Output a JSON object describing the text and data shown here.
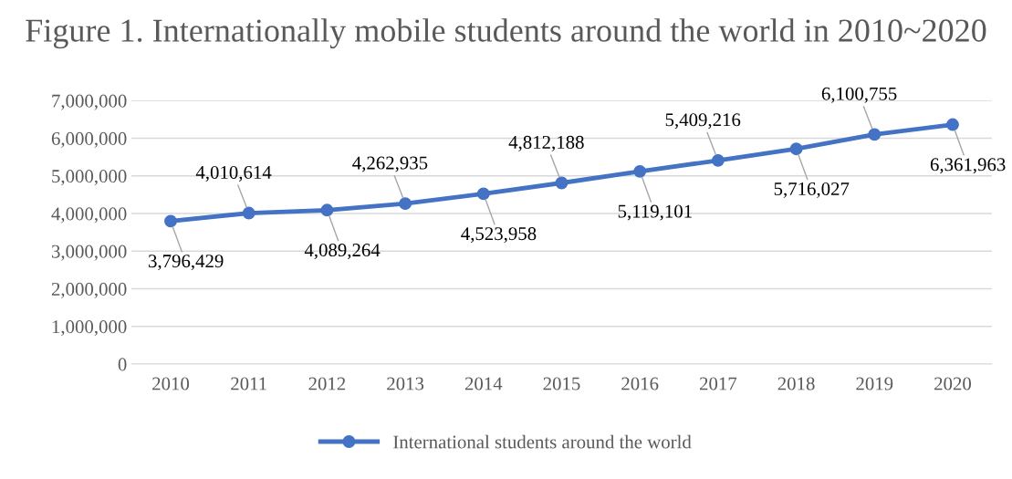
{
  "chart_data": {
    "type": "line",
    "title": "Figure 1. Internationally mobile students around the world in 2010~2020",
    "categories": [
      "2010",
      "2011",
      "2012",
      "2013",
      "2014",
      "2015",
      "2016",
      "2017",
      "2018",
      "2019",
      "2020"
    ],
    "series": [
      {
        "name": "International students around the world",
        "color": "#4472c4",
        "values": [
          3796429,
          4010614,
          4089264,
          4262935,
          4523958,
          4812188,
          5119101,
          5409216,
          5716027,
          6100755,
          6361963
        ],
        "value_labels": [
          "3,796,429",
          "4,010,614",
          "4,089,264",
          "4,262,935",
          "4,523,958",
          "4,812,188",
          "5,119,101",
          "5,409,216",
          "5,716,027",
          "6,100,755",
          "6,361,963"
        ]
      }
    ],
    "ylim": [
      0,
      7000000
    ],
    "yticks": [
      {
        "value": 0,
        "label": "0"
      },
      {
        "value": 1000000,
        "label": "1,000,000"
      },
      {
        "value": 2000000,
        "label": "2,000,000"
      },
      {
        "value": 3000000,
        "label": "3,000,000"
      },
      {
        "value": 4000000,
        "label": "4,000,000"
      },
      {
        "value": 5000000,
        "label": "5,000,000"
      },
      {
        "value": 6000000,
        "label": "6,000,000"
      },
      {
        "value": 7000000,
        "label": "7,000,000"
      }
    ],
    "grid": "y",
    "legend": "bottom",
    "marker": "circle",
    "line_style": "solid"
  }
}
